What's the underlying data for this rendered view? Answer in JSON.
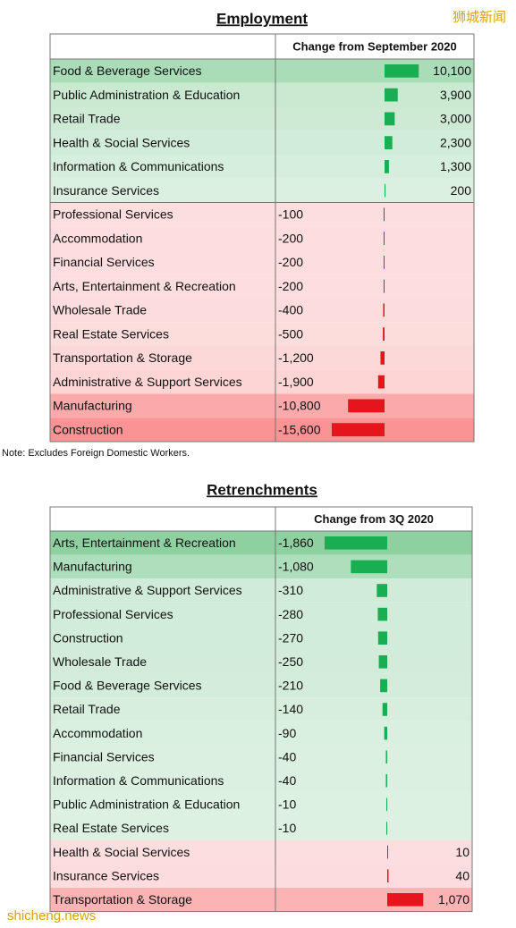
{
  "tables": [
    {
      "type": "bar",
      "title": "Employment",
      "column_header": "Change from September 2020",
      "positive_color": "#1aae52",
      "negative_color": "#e6141b",
      "categories": [
        "Food & Beverage Services",
        "Public Administration & Education",
        "Retail Trade",
        "Health & Social Services",
        "Information & Communications",
        "Insurance Services",
        "Professional Services",
        "Accommodation",
        "Financial Services",
        "Arts, Entertainment & Recreation",
        "Wholesale Trade",
        "Real Estate Services",
        "Transportation & Storage",
        "Administrative & Support Services",
        "Manufacturing",
        "Construction"
      ],
      "values": [
        10100,
        3900,
        3000,
        2300,
        1300,
        200,
        -100,
        -200,
        -200,
        -200,
        -400,
        -500,
        -1200,
        -1900,
        -10800,
        -15600
      ],
      "value_labels": [
        "10,100",
        "3,900",
        "3,000",
        "2,300",
        "1,300",
        "200",
        "-100",
        "-200",
        "-200",
        "-200",
        "-400",
        "-500",
        "-1,200",
        "-1,900",
        "-10,800",
        "-15,600"
      ]
    },
    {
      "type": "bar",
      "title": "Retrenchments",
      "column_header": "Change from 3Q 2020",
      "positive_color": "#e6141b",
      "negative_color": "#1aae52",
      "categories": [
        "Arts, Entertainment & Recreation",
        "Manufacturing",
        "Administrative & Support Services",
        "Professional Services",
        "Construction",
        "Wholesale Trade",
        "Food & Beverage Services",
        "Retail Trade",
        "Accommodation",
        "Financial Services",
        "Information & Communications",
        "Public Administration & Education",
        "Real Estate Services",
        "Health & Social Services",
        "Insurance Services",
        "Transportation & Storage"
      ],
      "values": [
        -1860,
        -1080,
        -310,
        -280,
        -270,
        -250,
        -210,
        -140,
        -90,
        -40,
        -40,
        -10,
        -10,
        10,
        40,
        1070
      ],
      "value_labels": [
        "-1,860",
        "-1,080",
        "-310",
        "-280",
        "-270",
        "-250",
        "-210",
        "-140",
        "-90",
        "-40",
        "-40",
        "-10",
        "-10",
        "10",
        "40",
        "1,070"
      ]
    }
  ],
  "note": "Note: Excludes Foreign Domestic Workers.",
  "watermark_top": "狮城新闻",
  "watermark_bottom": "shicheng.news"
}
